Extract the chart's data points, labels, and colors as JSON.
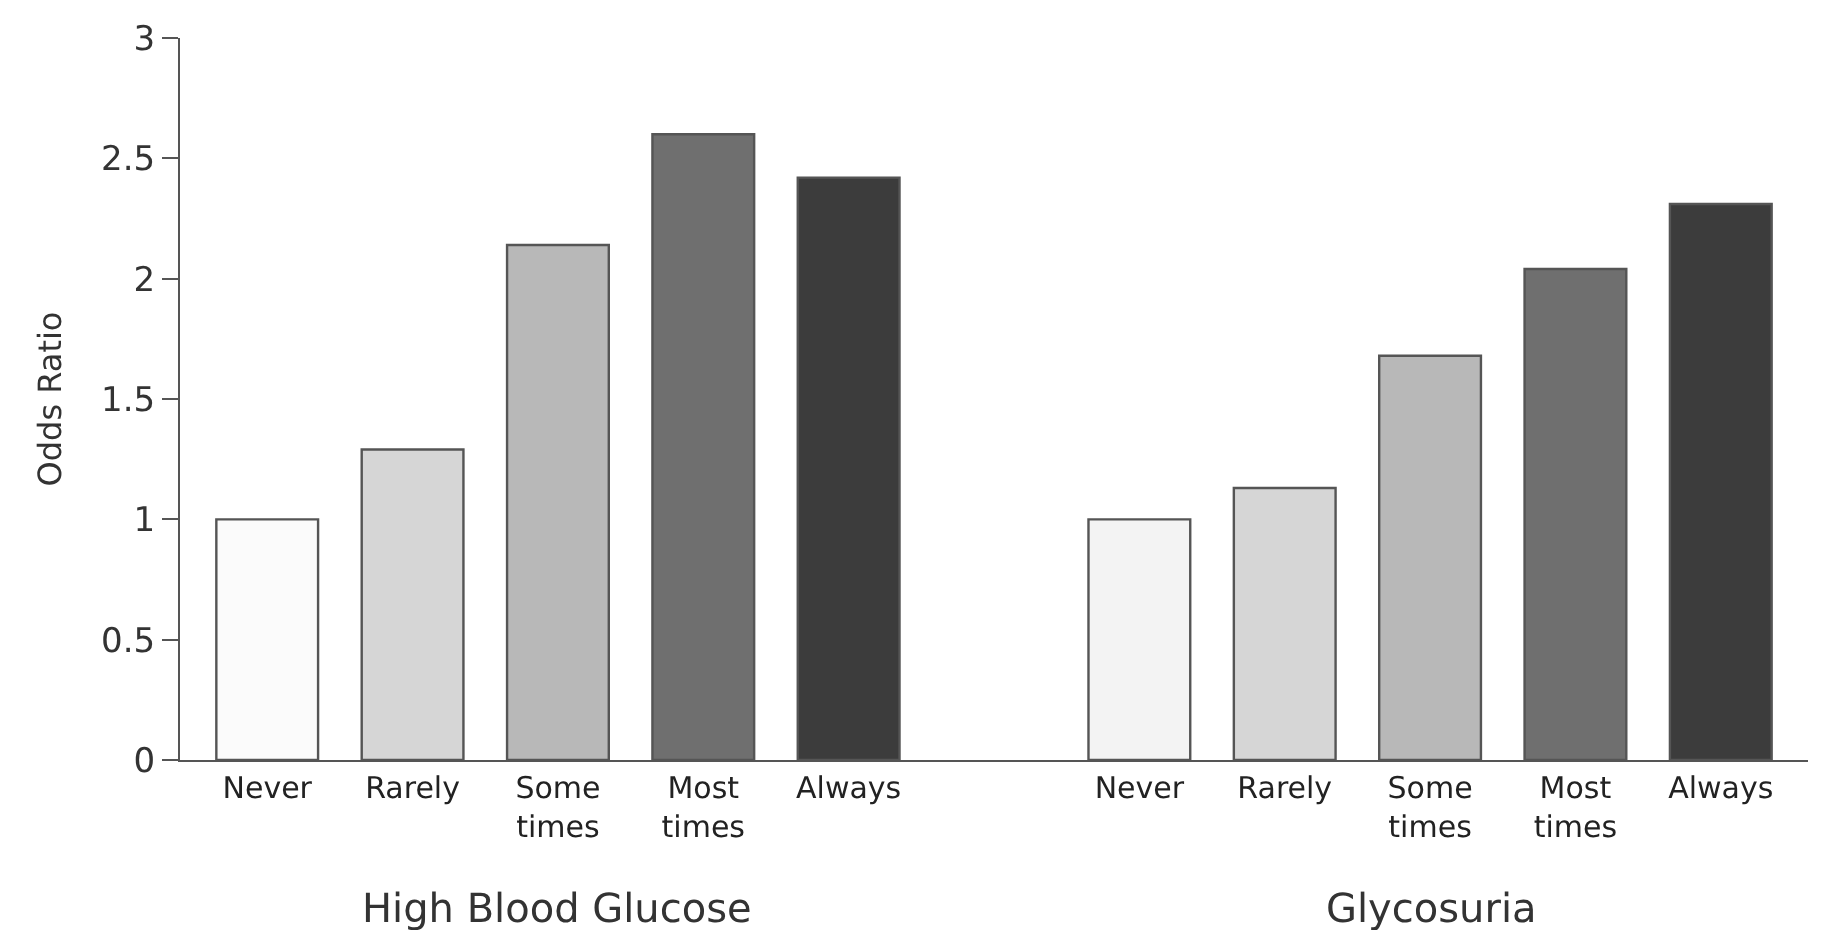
{
  "chart_data": {
    "type": "bar",
    "ylabel": "Odds Ratio",
    "categories": [
      "Never",
      "Rarely",
      "Some times",
      "Most times",
      "Always",
      null,
      "Never",
      "Rarely",
      "Some times",
      "Most times",
      "Always"
    ],
    "values": [
      1.0,
      1.29,
      2.14,
      2.6,
      2.42,
      null,
      1.0,
      1.13,
      1.68,
      2.04,
      2.31
    ],
    "colors": [
      "#fbfbfb",
      "#d6d6d6",
      "#b8b8b8",
      "#6f6f6f",
      "#3c3c3c",
      null,
      "#f3f3f3",
      "#d6d6d6",
      "#b8b8b8",
      "#6f6f6f",
      "#3c3c3c"
    ],
    "ylim": [
      0,
      3
    ],
    "yticks": [
      0,
      0.5,
      1,
      1.5,
      2,
      2.5,
      3
    ],
    "annotations": [
      "High Blood Glucose",
      "Glycosuria"
    ]
  }
}
